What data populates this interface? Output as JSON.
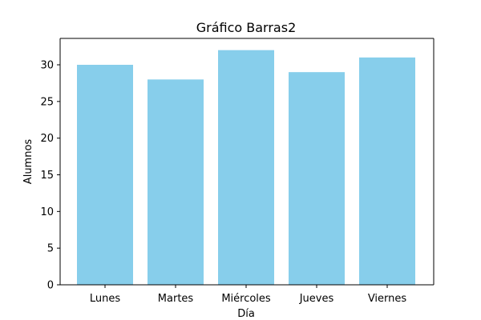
{
  "chart_data": {
    "type": "bar",
    "title": "Gráfico Barras2",
    "xlabel": "Día",
    "ylabel": "Alumnos",
    "categories": [
      "Lunes",
      "Martes",
      "Miércoles",
      "Jueves",
      "Viernes"
    ],
    "values": [
      30,
      28,
      32,
      29,
      31
    ],
    "ylim": [
      0,
      33.6
    ],
    "yticks": [
      0,
      5,
      10,
      15,
      20,
      25,
      30
    ],
    "grid": false,
    "legend": "none",
    "bar_color": "#87ceeb"
  }
}
